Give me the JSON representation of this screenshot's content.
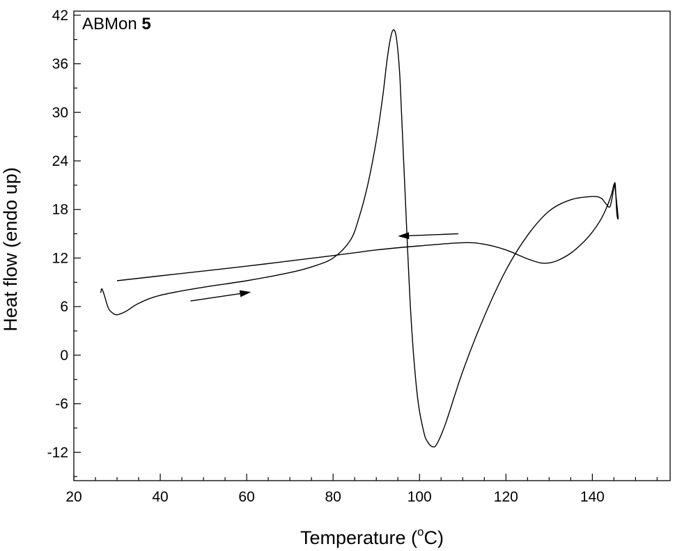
{
  "chart_data": {
    "type": "line",
    "title": "",
    "annotation": {
      "prefix": "ABMon ",
      "bold": "5"
    },
    "xlabel": {
      "main": "Temperature (",
      "sup": "o",
      "unit": "C)"
    },
    "ylabel": "Heat flow (endo up)",
    "xlim": [
      20,
      158
    ],
    "ylim": [
      -15.5,
      42.5
    ],
    "x_ticks": [
      20,
      40,
      60,
      80,
      100,
      120,
      140
    ],
    "x_minor_step": 5,
    "y_ticks": [
      -12,
      -6,
      0,
      6,
      12,
      18,
      24,
      30,
      36,
      42
    ],
    "y_minor_step": 3,
    "grid": false,
    "legend": "none",
    "line_color": "#000000",
    "series": [
      {
        "x": [
          26.2,
          26.5,
          27.0,
          28.0,
          29.0,
          30.0,
          32.0,
          35.0,
          40.0,
          50.0,
          60.0,
          70.0,
          75.0,
          80.0,
          84.0,
          86.0,
          88.0,
          90.0,
          91.5,
          92.5,
          93.3,
          94.0,
          94.7,
          95.5,
          96.5,
          98.0,
          99.5,
          101.0,
          102.0,
          103.0,
          104.0,
          106.0,
          110.0,
          115.0,
          120.0,
          125.0,
          130.0,
          135.0,
          140.0,
          142.0,
          143.0,
          144.0,
          144.6,
          145.0,
          145.3,
          145.6,
          145.8,
          146.0
        ],
        "y": [
          7.7,
          8.2,
          7.5,
          5.8,
          5.2,
          5.0,
          5.4,
          6.4,
          7.4,
          8.4,
          9.2,
          10.2,
          10.9,
          12.0,
          14.2,
          17.0,
          21.0,
          26.5,
          32.0,
          36.5,
          39.2,
          40.2,
          39.0,
          34.0,
          22.0,
          5.0,
          -5.0,
          -9.5,
          -10.8,
          -11.3,
          -11.0,
          -8.5,
          -2.0,
          4.8,
          10.5,
          14.8,
          17.8,
          19.2,
          19.6,
          19.4,
          18.8,
          18.3,
          19.5,
          20.9,
          21.1,
          18.0,
          17.0,
          16.8
        ]
      },
      {
        "x": [
          146.0,
          145.8,
          145.5,
          145.2,
          145.0,
          144.5,
          143.5,
          142.0,
          140.0,
          138.0,
          135.0,
          132.0,
          130.0,
          128.0,
          125.0,
          120.0,
          115.0,
          110.0,
          100.0,
          90.0,
          80.0,
          60.0,
          40.0,
          30.0
        ],
        "y": [
          16.8,
          18.0,
          19.5,
          20.8,
          21.1,
          20.0,
          18.5,
          16.8,
          15.2,
          14.0,
          12.6,
          11.7,
          11.4,
          11.4,
          11.9,
          13.0,
          13.7,
          13.9,
          13.5,
          13.0,
          12.3,
          11.0,
          9.8,
          9.2
        ]
      }
    ],
    "arrows": [
      {
        "direction": "right",
        "from": [
          47,
          6.7
        ],
        "to": [
          61,
          7.8
        ]
      },
      {
        "direction": "left",
        "from": [
          109,
          15.0
        ],
        "to": [
          95,
          14.7
        ]
      }
    ]
  }
}
